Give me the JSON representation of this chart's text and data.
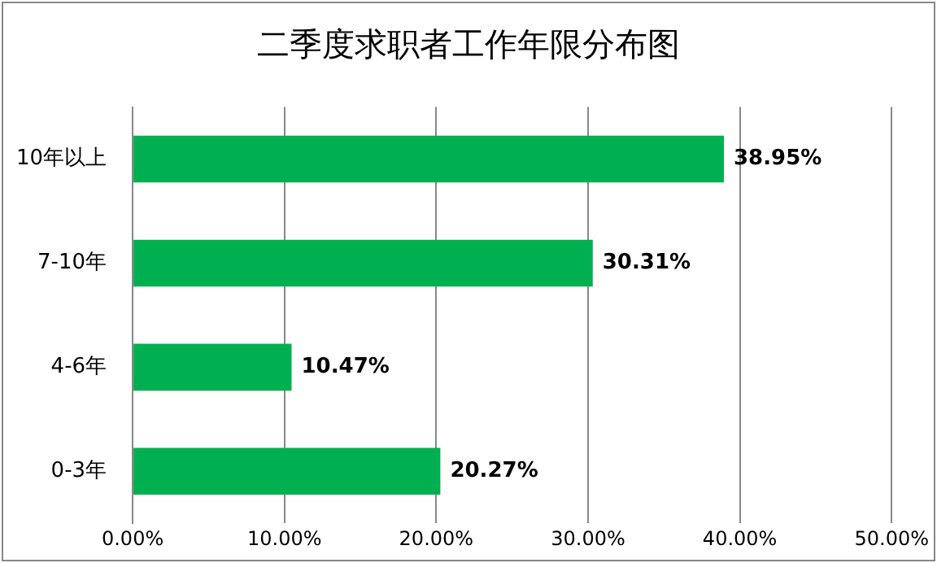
{
  "chart_data": {
    "type": "bar",
    "orientation": "horizontal",
    "title": "二季度求职者工作年限分布图",
    "categories": [
      "10年以上",
      "7-10年",
      "4-6年",
      "0-3年"
    ],
    "values": [
      38.95,
      30.31,
      10.47,
      20.27
    ],
    "value_labels": [
      "38.95%",
      "30.31%",
      "10.47%",
      "20.27%"
    ],
    "color": "#00b050",
    "xlim": [
      0,
      50
    ],
    "xticks": [
      {
        "value": 0,
        "label": "0.00%"
      },
      {
        "value": 10,
        "label": "10.00%"
      },
      {
        "value": 20,
        "label": "20.00%"
      },
      {
        "value": 30,
        "label": "30.00%"
      },
      {
        "value": 40,
        "label": "40.00%"
      },
      {
        "value": 50,
        "label": "50.00%"
      }
    ],
    "grid": "x",
    "legend": false
  }
}
